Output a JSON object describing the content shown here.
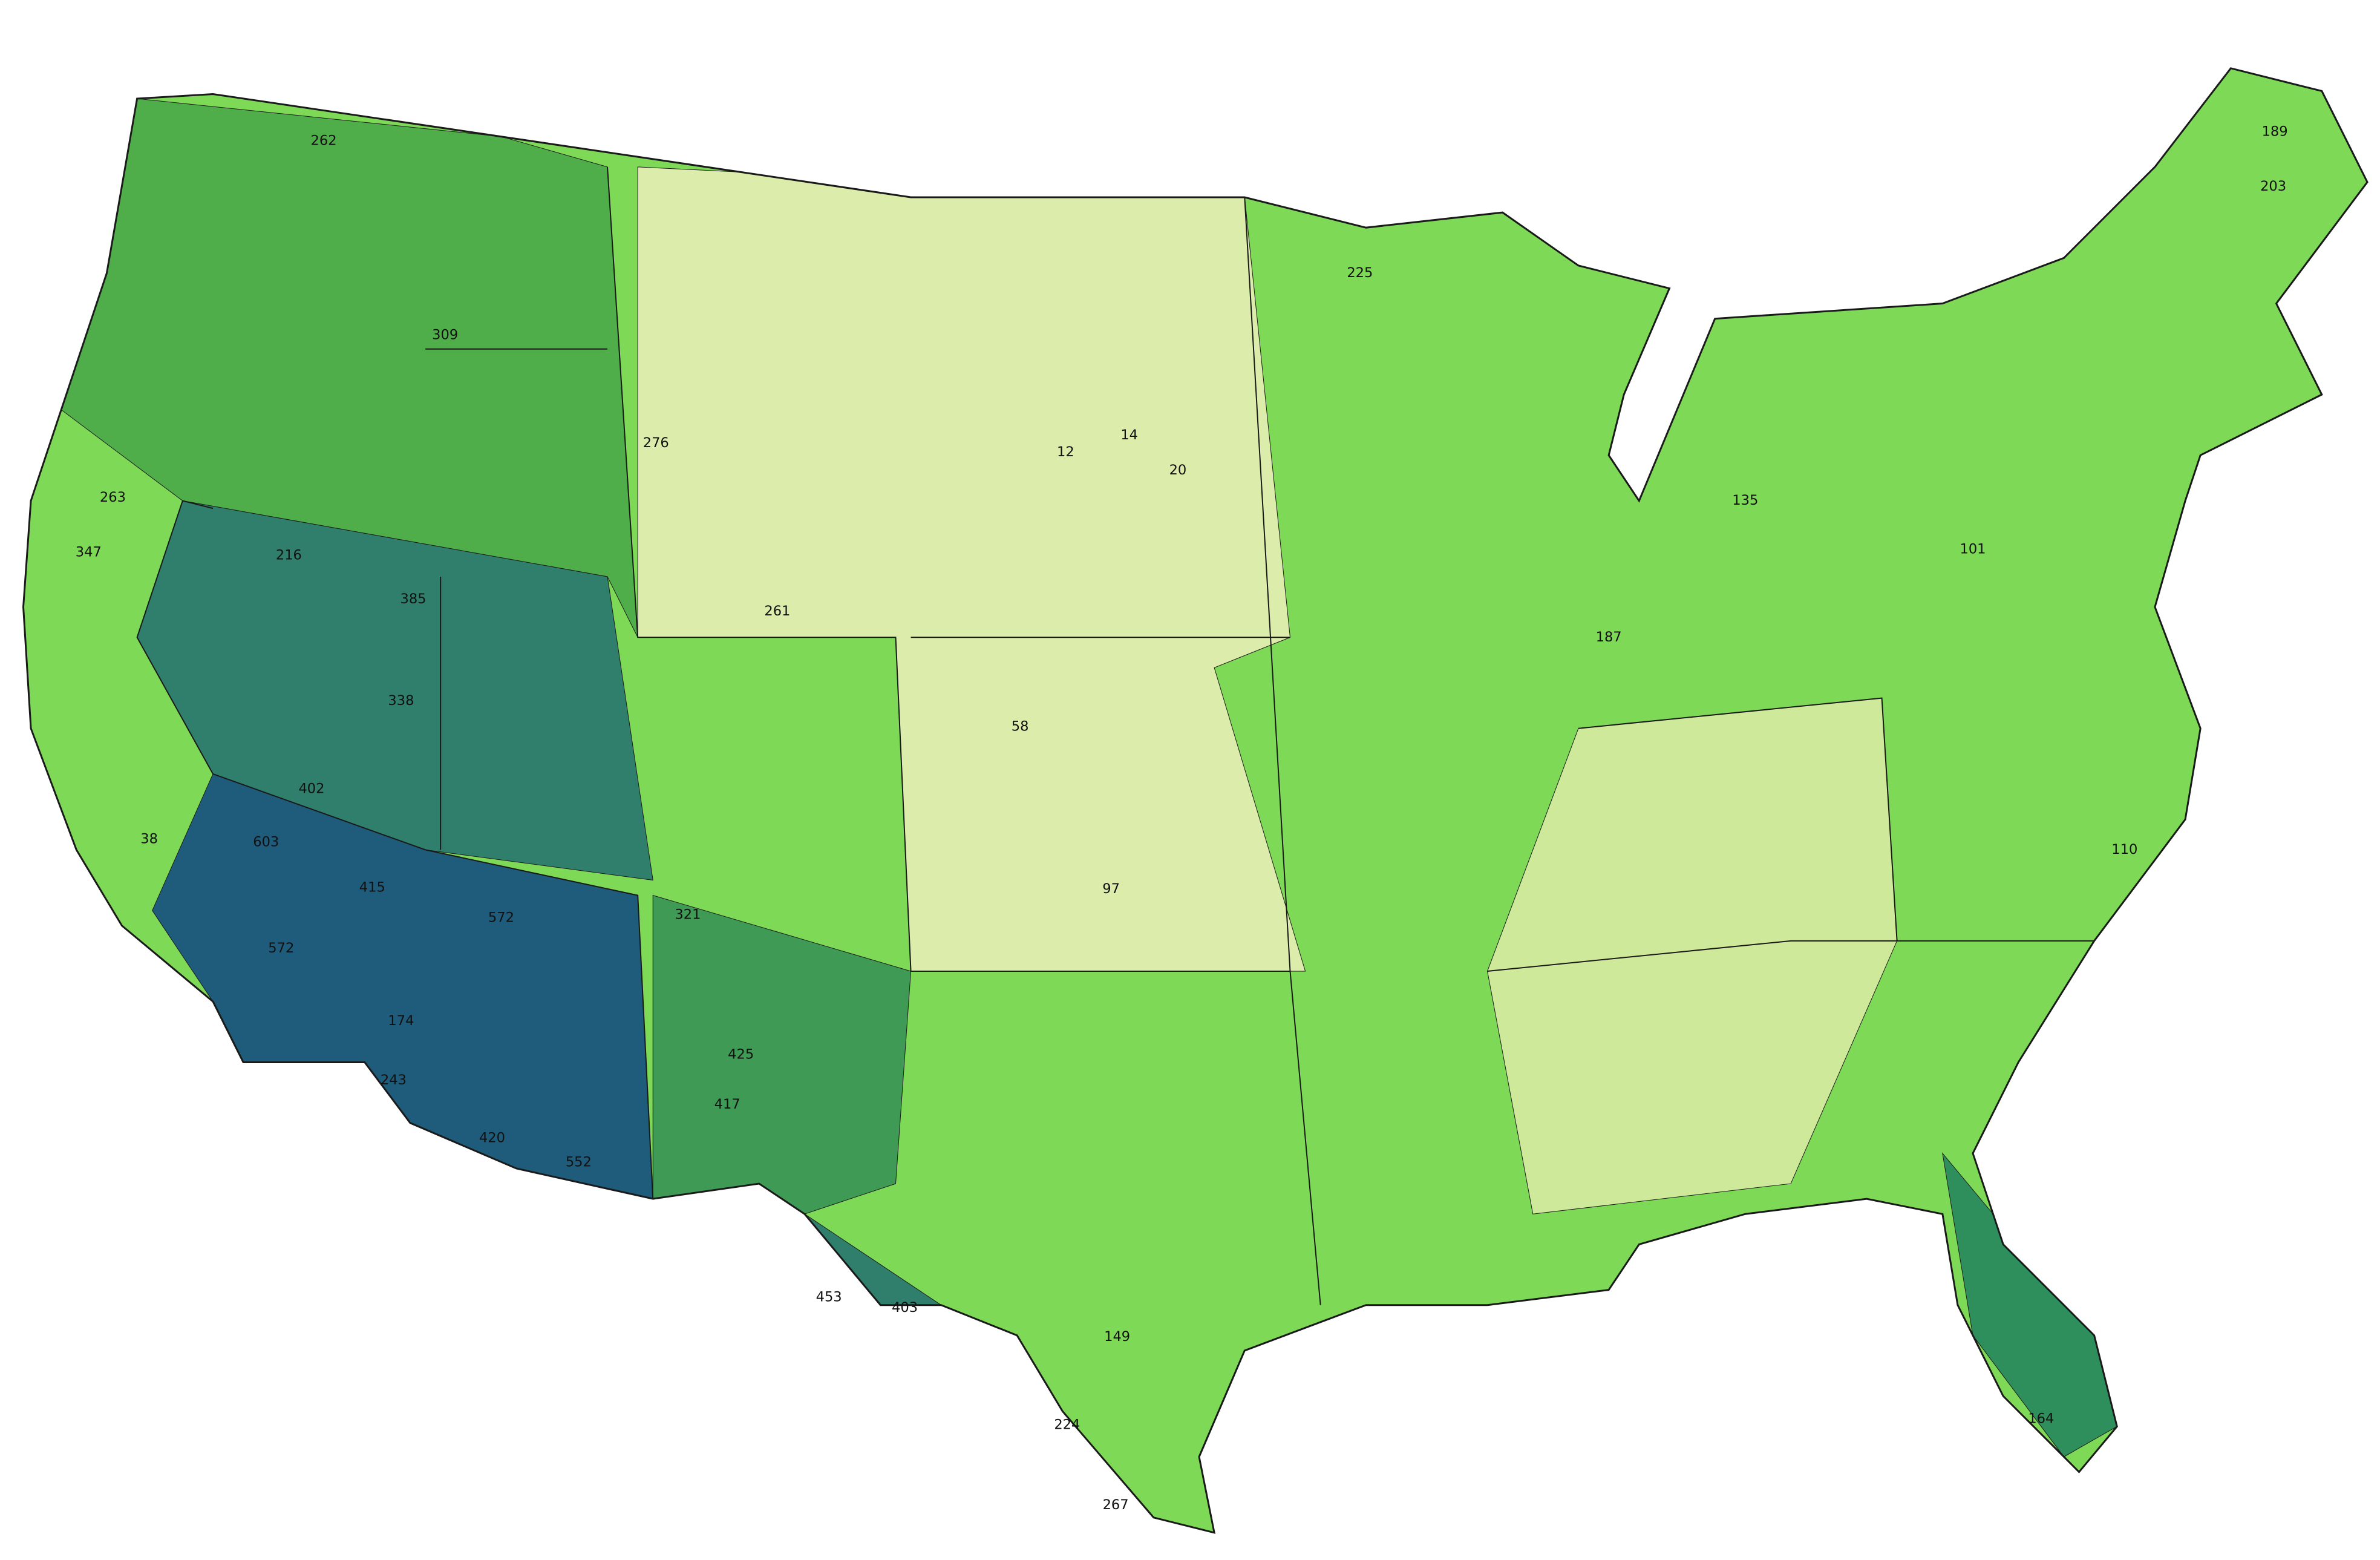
{
  "map": {
    "background": "#ffffff",
    "land_color": "#7ed957",
    "border_color": "#1a1a1a",
    "regions": [
      {
        "color": "#4fae4a"
      },
      {
        "color": "#2f7f6c"
      },
      {
        "color": "#1f5b7a"
      },
      {
        "color": "#dcedab"
      },
      {
        "color": "#cfe99a"
      },
      {
        "color": "#3f9a55"
      },
      {
        "color": "#2f7f6c"
      },
      {
        "color": "#2f8f5c"
      }
    ],
    "labels": [
      262,
      309,
      263,
      347,
      216,
      385,
      338,
      276,
      261,
      402,
      603,
      415,
      572,
      572,
      425,
      321,
      417,
      420,
      552,
      174,
      243,
      453,
      403,
      38,
      12,
      14,
      20,
      58,
      97,
      225,
      189,
      203,
      224,
      267,
      149,
      164,
      101,
      135,
      110,
      187
    ]
  }
}
